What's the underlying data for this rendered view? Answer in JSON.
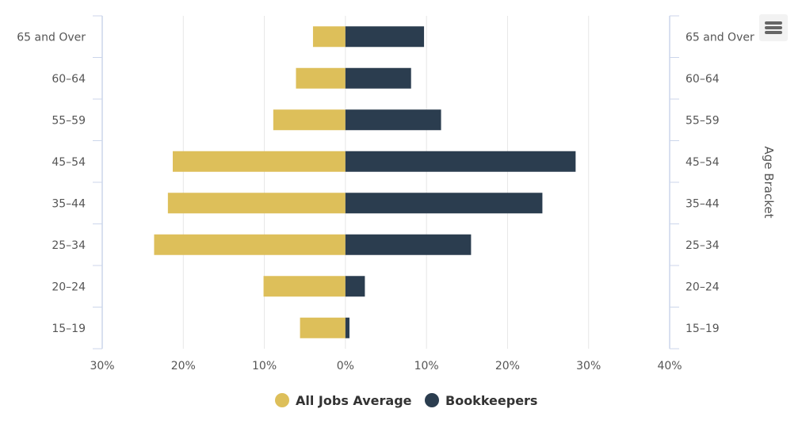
{
  "chart_data": {
    "type": "bar",
    "orientation": "horizontal",
    "categories": [
      "65 and Over",
      "60–64",
      "55–59",
      "45–54",
      "35–44",
      "25–34",
      "20–24",
      "15–19"
    ],
    "series": [
      {
        "name": "All Jobs Average",
        "color": "#DDBF5A",
        "values": [
          -4,
          -6.1,
          -8.9,
          -21.3,
          -21.9,
          -23.6,
          -10.1,
          -5.6
        ]
      },
      {
        "name": "Bookkeepers",
        "color": "#2B3D4F",
        "values": [
          9.7,
          8.1,
          11.8,
          28.4,
          24.3,
          15.5,
          2.4,
          0.5
        ]
      }
    ],
    "x_tick_labels": [
      "30%",
      "20%",
      "10%",
      "0%",
      "10%",
      "20%",
      "30%",
      "40%"
    ],
    "x_ticks": [
      -30,
      -20,
      -10,
      0,
      10,
      20,
      30,
      40
    ],
    "xlim": [
      -30,
      40
    ],
    "y_axis_title": "Age Bracket",
    "grid": true,
    "legend_position": "bottom-center"
  },
  "menu": {
    "icon": "hamburger-menu-icon"
  }
}
